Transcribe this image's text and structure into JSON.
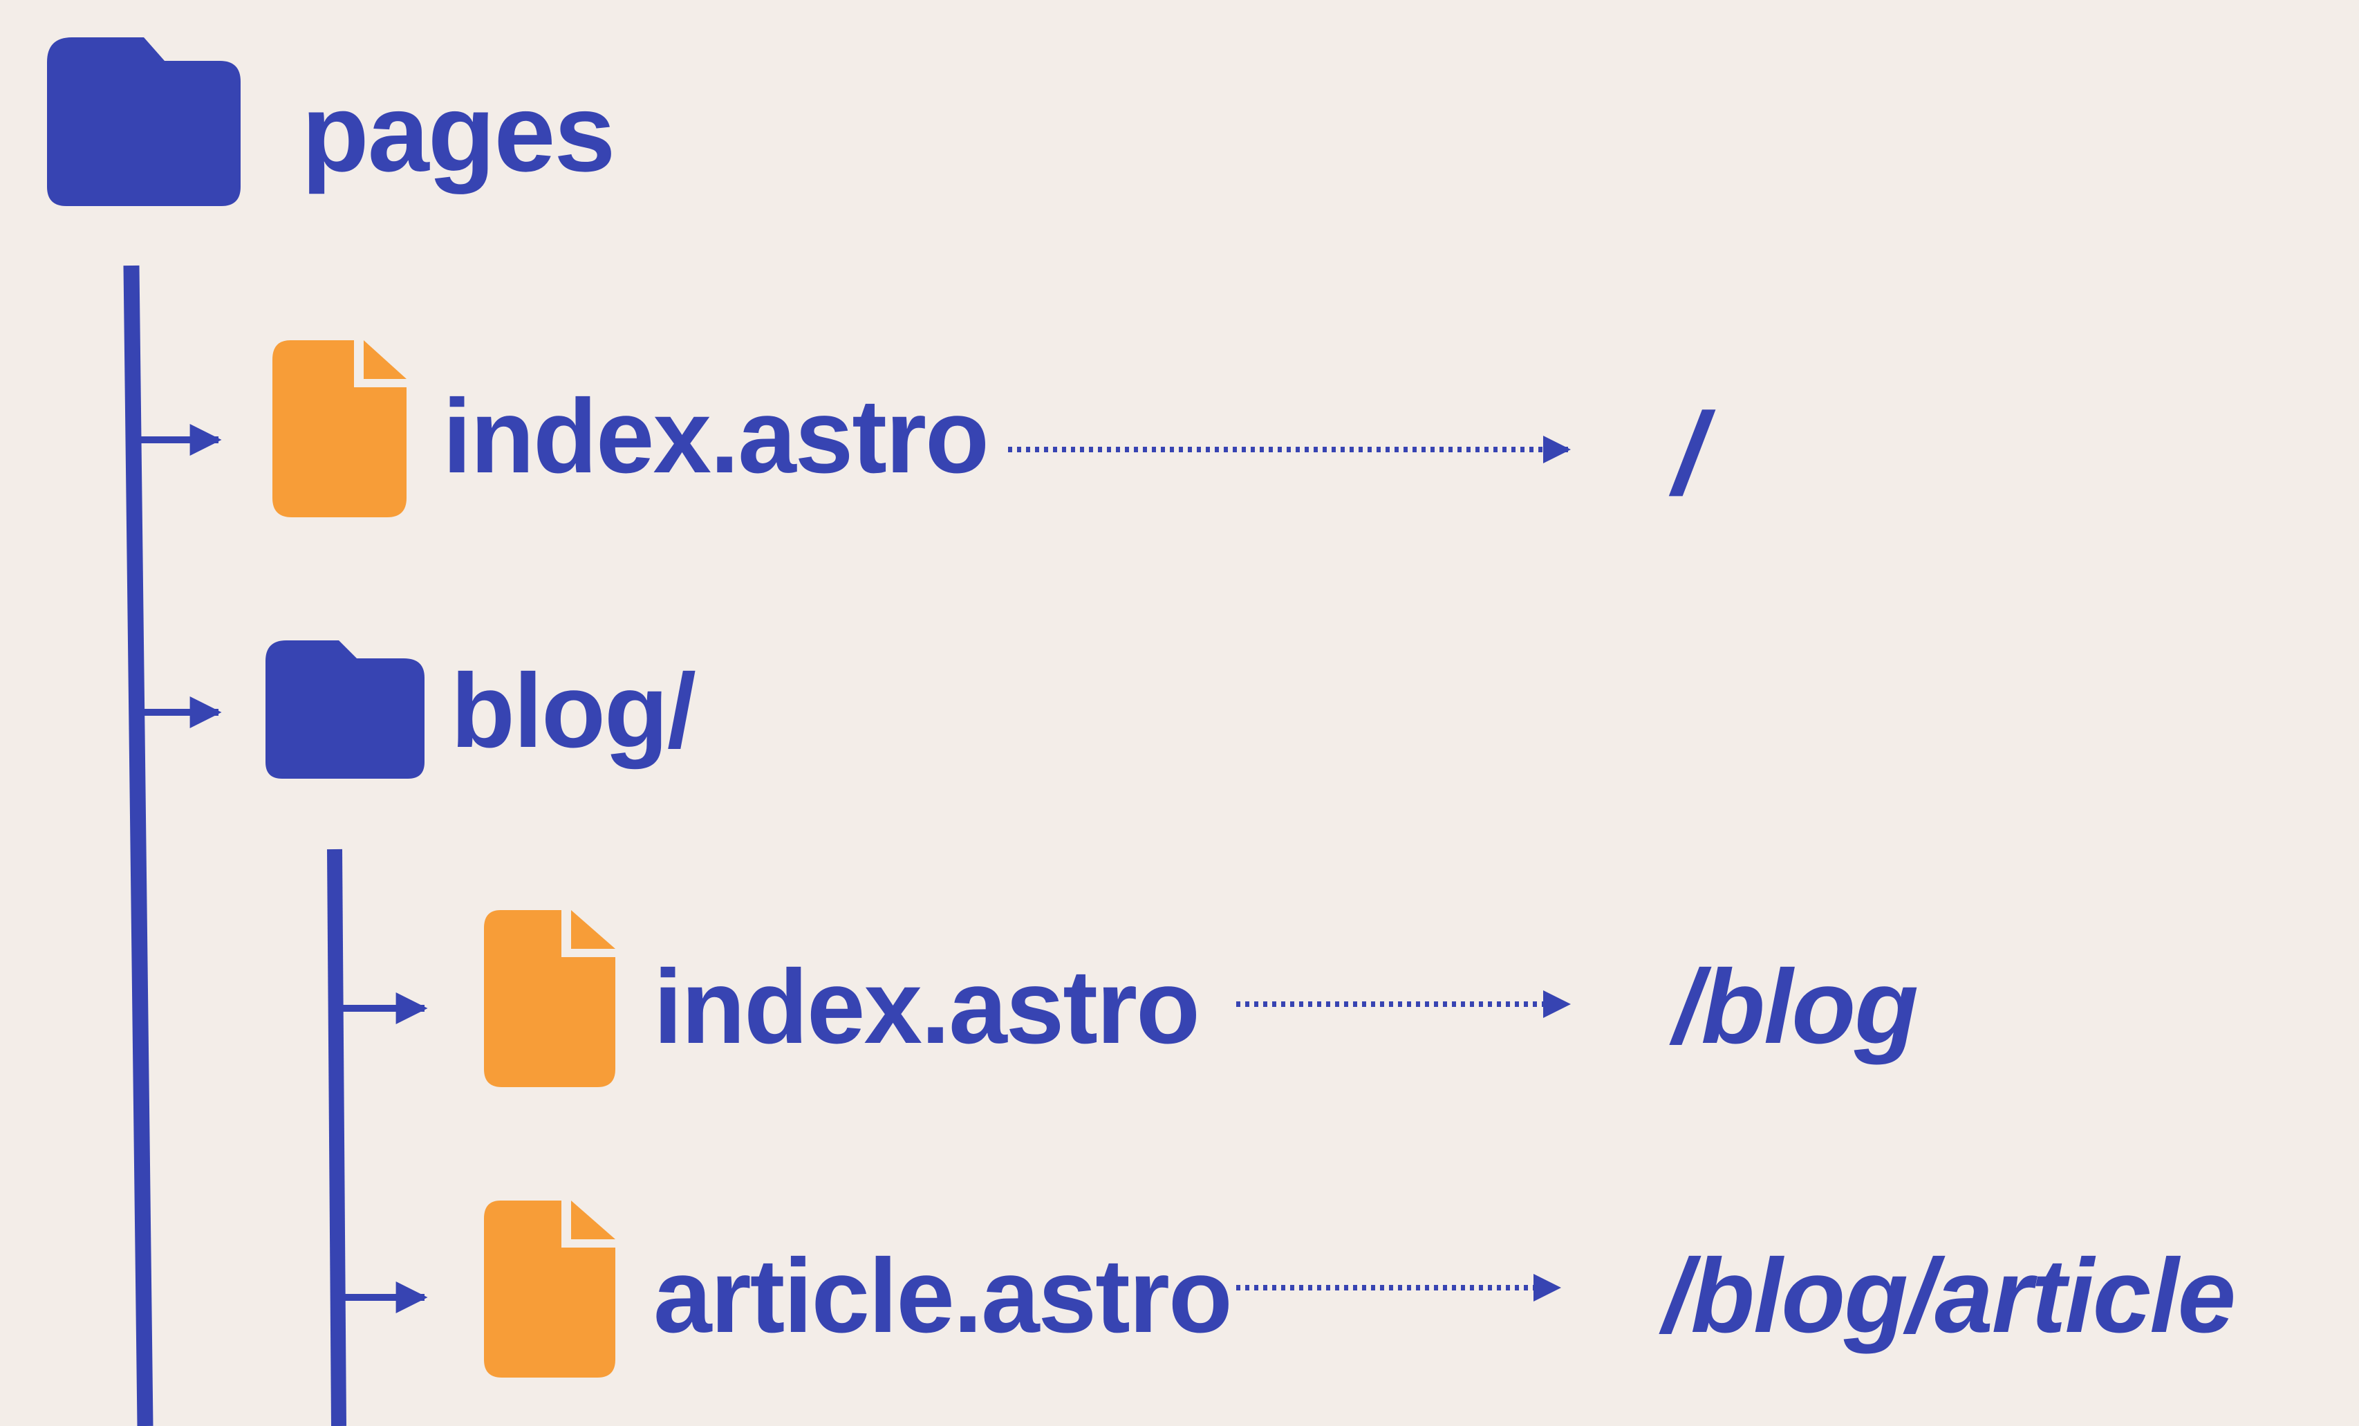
{
  "tree": {
    "root": {
      "label": "pages",
      "icon": "folder-icon"
    },
    "items": [
      {
        "label": "index.astro",
        "icon": "file-icon",
        "route": "/"
      },
      {
        "label": "blog/",
        "icon": "folder-icon"
      },
      {
        "label": "index.astro",
        "icon": "file-icon",
        "route": "/blog"
      },
      {
        "label": "article.astro",
        "icon": "file-icon",
        "route": "/blog/article"
      }
    ]
  },
  "colors": {
    "background": "#f3ede8",
    "primary": "#3744b2",
    "file": "#f79d38"
  }
}
